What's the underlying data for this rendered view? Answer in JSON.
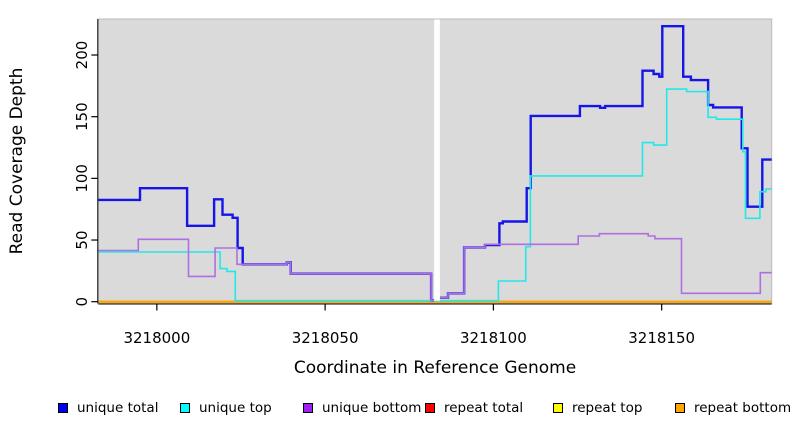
{
  "chart_data": {
    "type": "line",
    "subtype": "step-coverage-plot",
    "title": "",
    "xlabel": "Coordinate in Reference Genome",
    "ylabel": "Read Coverage Depth",
    "xlim": [
      3217982.6,
      3218182.7
    ],
    "ylim": [
      0,
      229.2
    ],
    "x_ticks": [
      3218000,
      3218050,
      3218100,
      3218150
    ],
    "y_ticks": [
      0,
      50,
      100,
      150,
      200
    ],
    "grid": "off",
    "legend_position": "bottom",
    "plot_bg_color": "#DADADA",
    "masked_region": {
      "x_start": 3218082.4,
      "x_end": 3218084.1,
      "color": "#FFFFFF"
    },
    "series": [
      {
        "name": "repeat total",
        "color": "#FF0000",
        "width": 2,
        "segments": [
          [
            [
              3217982.6,
              0
            ],
            [
              3218182.7,
              0
            ]
          ]
        ]
      },
      {
        "name": "repeat top",
        "color": "#FFFF00",
        "width": 2,
        "segments": [
          [
            [
              3217982.6,
              0
            ],
            [
              3218182.7,
              0
            ]
          ]
        ]
      },
      {
        "name": "repeat bottom",
        "color": "#FFA500",
        "width": 2,
        "segments": [
          [
            [
              3217982.6,
              0
            ],
            [
              3218182.7,
              0
            ]
          ]
        ]
      },
      {
        "name": "unique total",
        "color": "#1515E8",
        "width": 2.4,
        "segments": [
          [
            [
              3217982.6,
              82.5
            ],
            [
              3217995,
              92
            ],
            [
              3218009,
              61.5
            ],
            [
              3218017,
              83
            ],
            [
              3218019.5,
              70.5
            ],
            [
              3218022.5,
              68
            ],
            [
              3218024,
              43.5
            ],
            [
              3218025.5,
              30.3
            ],
            [
              3218038.6,
              31.8
            ],
            [
              3218039.8,
              22.7
            ],
            [
              3218081.5,
              1
            ],
            [
              3218082.4,
              1
            ]
          ],
          [
            [
              3218084.1,
              3.2
            ],
            [
              3218086.5,
              6.8
            ],
            [
              3218091.3,
              44
            ],
            [
              3218097.5,
              46
            ],
            [
              3218101.8,
              63.6
            ],
            [
              3218102.8,
              65
            ],
            [
              3218109.9,
              92
            ],
            [
              3218111.1,
              150.6
            ],
            [
              3218125.7,
              158.6
            ],
            [
              3218131.7,
              157.2
            ],
            [
              3218133.2,
              158.6
            ],
            [
              3218144.3,
              187.3
            ],
            [
              3218147.6,
              184.6
            ],
            [
              3218149.3,
              182.4
            ],
            [
              3218150.2,
              223.4
            ],
            [
              3218156.4,
              182.4
            ],
            [
              3218158.7,
              179.7
            ],
            [
              3218163.8,
              159.5
            ],
            [
              3218165.3,
              157.5
            ],
            [
              3218173.8,
              124.4
            ],
            [
              3218175.5,
              77
            ],
            [
              3218179.9,
              115.2
            ],
            [
              3218182.7,
              115.2
            ]
          ]
        ]
      },
      {
        "name": "unique top",
        "color": "#22E8E8",
        "width": 1.6,
        "segments": [
          [
            [
              3217982.6,
              40.3
            ],
            [
              3218018.8,
              26.8
            ],
            [
              3218020.8,
              24.6
            ],
            [
              3218023.3,
              0.8
            ],
            [
              3218101.5,
              16.8
            ],
            [
              3218109.6,
              44.6
            ],
            [
              3218111,
              102
            ],
            [
              3218144.3,
              129
            ],
            [
              3218147.6,
              127
            ],
            [
              3218151.5,
              172.4
            ],
            [
              3218157.4,
              170.3
            ],
            [
              3218163.8,
              149.5
            ],
            [
              3218166.3,
              148
            ],
            [
              3218174.1,
              121.6
            ],
            [
              3218174.9,
              67.6
            ],
            [
              3218179.2,
              89.2
            ],
            [
              3218181,
              91.4
            ],
            [
              3218182.7,
              91.4
            ]
          ]
        ]
      },
      {
        "name": "unique bottom",
        "color": "#B06FE0",
        "width": 1.6,
        "segments": [
          [
            [
              3217982.6,
              41.5
            ],
            [
              3217994.5,
              50.6
            ],
            [
              3218009.4,
              20.5
            ],
            [
              3218017.3,
              43.5
            ],
            [
              3218023.8,
              30.3
            ],
            [
              3218038.6,
              31.8
            ],
            [
              3218039.8,
              22.7
            ],
            [
              3218081.5,
              1
            ],
            [
              3218082.4,
              1
            ]
          ],
          [
            [
              3218084.1,
              3.2
            ],
            [
              3218086.5,
              6.8
            ],
            [
              3218091.3,
              44
            ],
            [
              3218097.5,
              46.5
            ],
            [
              3218125.2,
              53.3
            ],
            [
              3218131.5,
              55.1
            ],
            [
              3218146,
              53.3
            ],
            [
              3218148,
              51.1
            ],
            [
              3218155.9,
              6.8
            ],
            [
              3218179.3,
              23.5
            ],
            [
              3218182.7,
              23.5
            ]
          ]
        ]
      }
    ],
    "legend": [
      {
        "label": "unique total",
        "color": "#0000F0"
      },
      {
        "label": "unique top",
        "color": "#00FFFF"
      },
      {
        "label": "unique bottom",
        "color": "#A020F0"
      },
      {
        "label": "repeat total",
        "color": "#FF0000"
      },
      {
        "label": "repeat top",
        "color": "#FFFF00"
      },
      {
        "label": "repeat bottom",
        "color": "#FFA500"
      }
    ]
  }
}
